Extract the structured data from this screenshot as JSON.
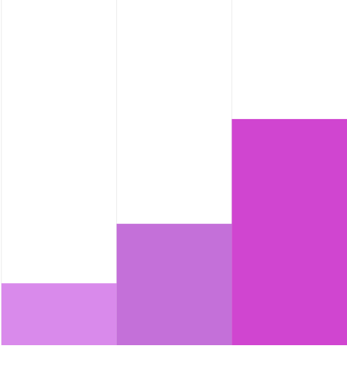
{
  "chart_data": {
    "type": "bar",
    "categories": [
      "",
      "",
      ""
    ],
    "values": [
      26,
      51,
      95
    ],
    "colors": [
      "#d98aeb",
      "#c470d9",
      "#d045d0"
    ],
    "ylim": [
      0,
      145
    ],
    "grid": "vertical",
    "legend": "none",
    "title": "",
    "xlabel": "",
    "ylabel": ""
  }
}
